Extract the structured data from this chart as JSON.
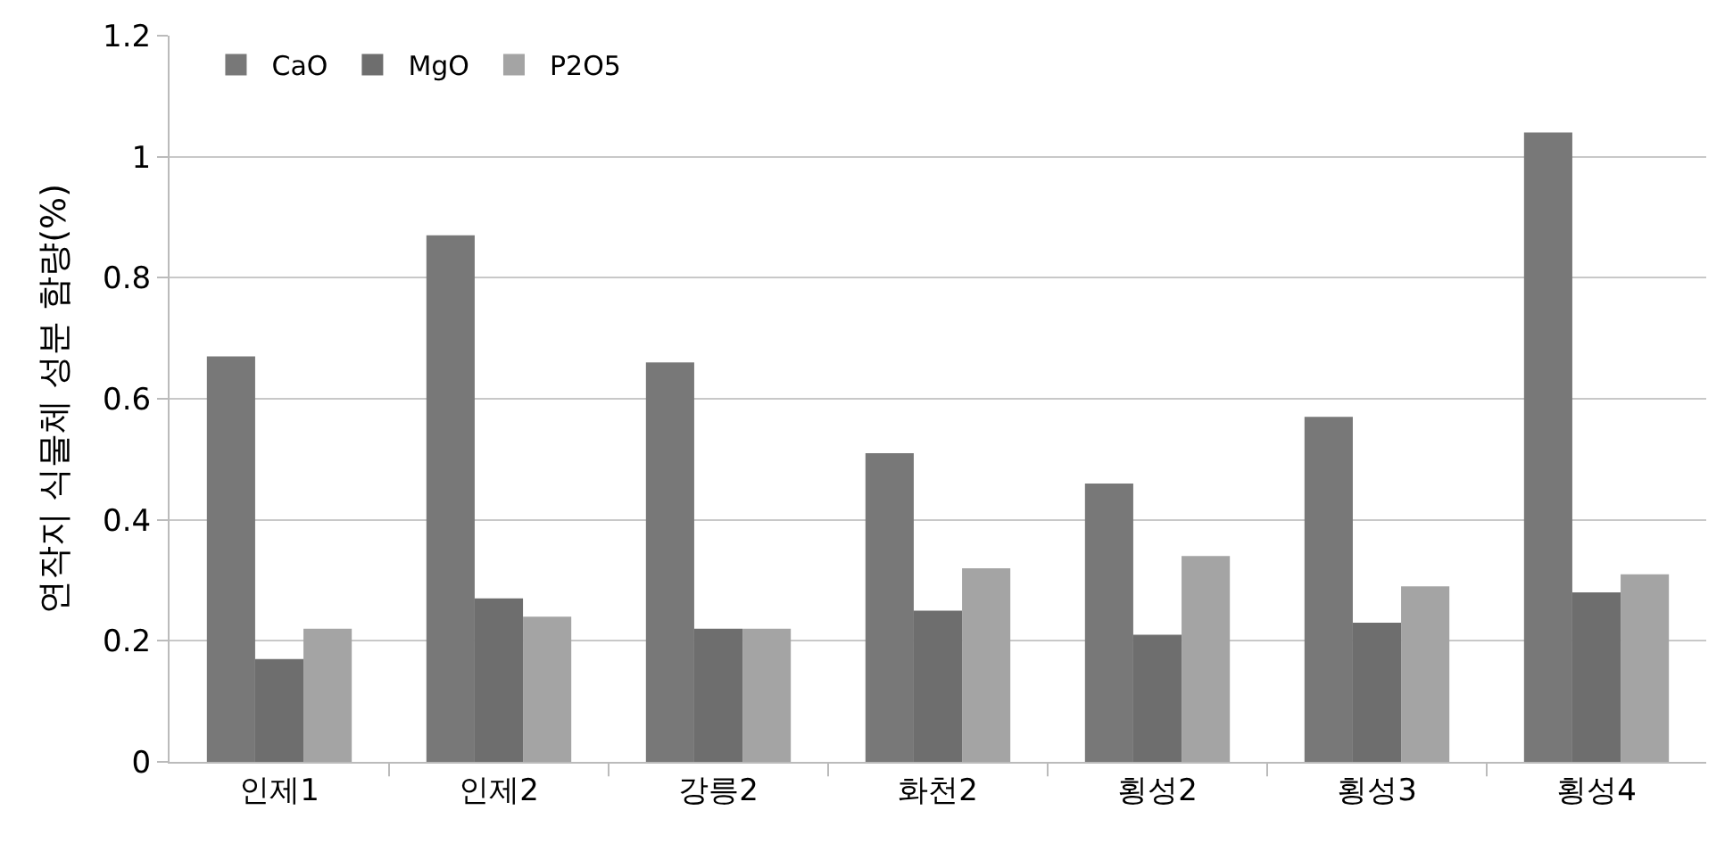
{
  "chart_data": {
    "type": "bar",
    "ylabel": "연작지 식물체 성분 함량(%)",
    "categories": [
      "인제1",
      "인제2",
      "강릉2",
      "화천2",
      "횡성2",
      "횡성3",
      "횡성4"
    ],
    "series": [
      {
        "name": "CaO",
        "color": "#787878",
        "values": [
          0.67,
          0.87,
          0.66,
          0.51,
          0.46,
          0.57,
          1.04
        ]
      },
      {
        "name": "MgO",
        "color": "#6e6e6e",
        "values": [
          0.17,
          0.27,
          0.22,
          0.25,
          0.21,
          0.23,
          0.28
        ]
      },
      {
        "name": "P2O5",
        "color": "#a4a4a4",
        "values": [
          0.22,
          0.24,
          0.22,
          0.32,
          0.34,
          0.29,
          0.31
        ]
      }
    ],
    "ylim": [
      0,
      1.2
    ],
    "yticks": [
      0,
      0.2,
      0.4,
      0.6,
      0.8,
      1,
      1.2
    ],
    "grid": "y",
    "legend": "top left"
  }
}
